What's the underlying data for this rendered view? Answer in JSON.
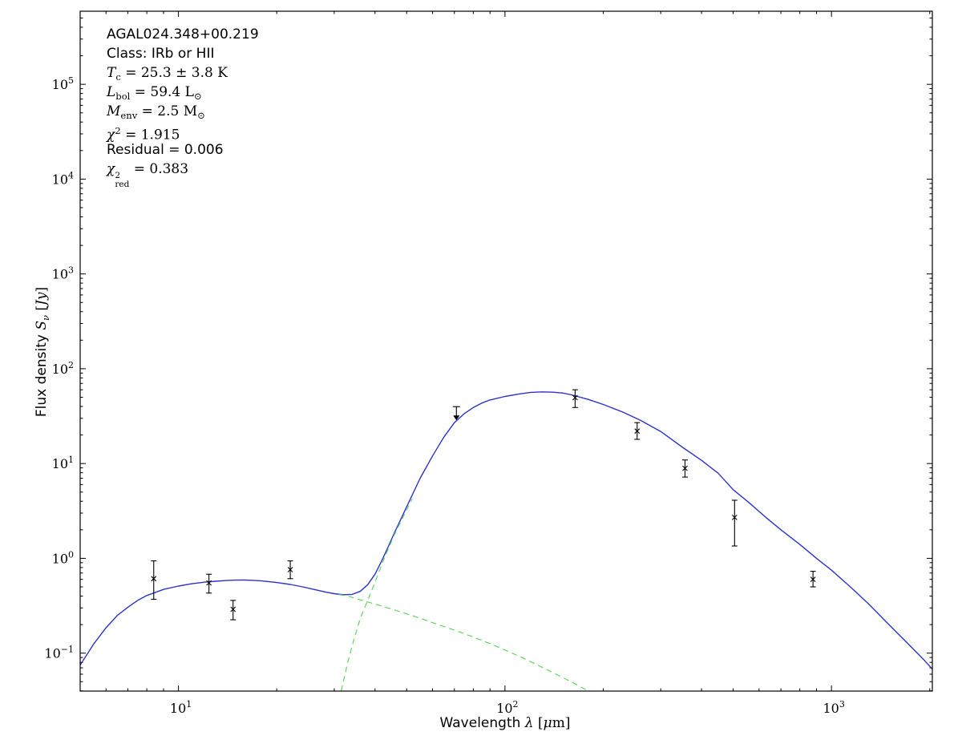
{
  "figure": {
    "background": "#ffffff",
    "annotation_lines": [
      {
        "name": "source-name",
        "segments": [
          {
            "t": "AGAL024.348+00.219",
            "s": "sans"
          }
        ]
      },
      {
        "name": "classification",
        "segments": [
          {
            "t": "Class: IRb or HII",
            "s": "sans"
          }
        ]
      },
      {
        "name": "dust-temperature",
        "segments": [
          {
            "t": "T",
            "s": "it"
          },
          {
            "t": "c",
            "s": "sub"
          },
          {
            "t": " = 25.3 ± 3.8 K",
            "s": "rm"
          }
        ]
      },
      {
        "name": "bolometric-luminosity",
        "segments": [
          {
            "t": "L",
            "s": "it"
          },
          {
            "t": "bol",
            "s": "sub"
          },
          {
            "t": " = 59.4 L",
            "s": "rm"
          },
          {
            "t": "⊙",
            "s": "sub"
          }
        ]
      },
      {
        "name": "envelope-mass",
        "segments": [
          {
            "t": "M",
            "s": "it"
          },
          {
            "t": "env",
            "s": "sub"
          },
          {
            "t": " = 2.5 M",
            "s": "rm"
          },
          {
            "t": "⊙",
            "s": "sub"
          }
        ]
      },
      {
        "name": "chi-squared",
        "segments": [
          {
            "t": "χ",
            "s": "it"
          },
          {
            "t": "2",
            "s": "sup"
          },
          {
            "t": " = 1.915",
            "s": "rm"
          }
        ]
      },
      {
        "name": "residual",
        "segments": [
          {
            "t": "Residual = 0.006",
            "s": "sans"
          }
        ]
      },
      {
        "name": "chi-squared-reduced",
        "segments": [
          {
            "t": "χ",
            "s": "it"
          },
          {
            "sup": "2",
            "sub": "red",
            "s": "stack"
          },
          {
            "t": " = 0.383",
            "s": "rm"
          }
        ]
      }
    ]
  },
  "chart_data": {
    "type": "line",
    "title": "",
    "x_scale": "log",
    "y_scale": "log",
    "xlim": [
      5,
      2037
    ],
    "ylim": [
      0.0398,
      590000
    ],
    "grid": false,
    "legend": "none",
    "xlabel": "Wavelength λ [μm]",
    "ylabel": "Flux density Sν [Jy]",
    "xlabel_segments": [
      {
        "t": "Wavelength ",
        "s": "sans"
      },
      {
        "t": "λ",
        "s": "it"
      },
      {
        "t": " [",
        "s": "rm"
      },
      {
        "t": "μ",
        "s": "it"
      },
      {
        "t": "m",
        "s": "rm"
      },
      {
        "t": "]",
        "s": "rm"
      }
    ],
    "ylabel_segments": [
      {
        "t": "Flux density ",
        "s": "sans"
      },
      {
        "t": "S",
        "s": "it"
      },
      {
        "t": "ν",
        "s": "subit"
      },
      {
        "t": " [",
        "s": "rm"
      },
      {
        "t": "Jy",
        "s": "it"
      },
      {
        "t": "]",
        "s": "rm"
      }
    ],
    "x_major_ticks": [
      10,
      100,
      1000
    ],
    "y_major_ticks": [
      0.1,
      1,
      10,
      100,
      1000,
      10000,
      100000
    ],
    "colors": {
      "model_fit": "#2d32cf",
      "components": "#5ed65e",
      "data": "#000000",
      "frame": "#000000"
    },
    "series": [
      {
        "name": "model-total-fit",
        "color_key": "model_fit",
        "dash": "solid",
        "points": [
          [
            5,
            0.075
          ],
          [
            5.5,
            0.125
          ],
          [
            6,
            0.185
          ],
          [
            6.5,
            0.25
          ],
          [
            7,
            0.305
          ],
          [
            7.5,
            0.36
          ],
          [
            8,
            0.405
          ],
          [
            9,
            0.47
          ],
          [
            10,
            0.51
          ],
          [
            11,
            0.54
          ],
          [
            12,
            0.56
          ],
          [
            13,
            0.573
          ],
          [
            14,
            0.583
          ],
          [
            15,
            0.589
          ],
          [
            16,
            0.59
          ],
          [
            17,
            0.586
          ],
          [
            18,
            0.578
          ],
          [
            20,
            0.556
          ],
          [
            22,
            0.53
          ],
          [
            24,
            0.5
          ],
          [
            26,
            0.47
          ],
          [
            28,
            0.443
          ],
          [
            30,
            0.424
          ],
          [
            32,
            0.413
          ],
          [
            34,
            0.417
          ],
          [
            36,
            0.448
          ],
          [
            38,
            0.527
          ],
          [
            40,
            0.68
          ],
          [
            42,
            0.95
          ],
          [
            44,
            1.35
          ],
          [
            46,
            1.9
          ],
          [
            48,
            2.6
          ],
          [
            50,
            3.5
          ],
          [
            55,
            7
          ],
          [
            60,
            12
          ],
          [
            65,
            19
          ],
          [
            70,
            27
          ],
          [
            75,
            33.5
          ],
          [
            80,
            39
          ],
          [
            85,
            43.5
          ],
          [
            90,
            46.8
          ],
          [
            100,
            51
          ],
          [
            110,
            54
          ],
          [
            120,
            56.3
          ],
          [
            130,
            57
          ],
          [
            140,
            56.6
          ],
          [
            150,
            55.5
          ],
          [
            160,
            53
          ],
          [
            180,
            47.5
          ],
          [
            200,
            42
          ],
          [
            230,
            34.8
          ],
          [
            260,
            28.6
          ],
          [
            300,
            21.8
          ],
          [
            350,
            14.8
          ],
          [
            400,
            10.8
          ],
          [
            450,
            7.9
          ],
          [
            500,
            5.3
          ],
          [
            560,
            3.85
          ],
          [
            630,
            2.7
          ],
          [
            700,
            2
          ],
          [
            800,
            1.4
          ],
          [
            900,
            1
          ],
          [
            1000,
            0.75
          ],
          [
            1150,
            0.49
          ],
          [
            1300,
            0.33
          ],
          [
            1500,
            0.2
          ],
          [
            1700,
            0.13
          ],
          [
            1900,
            0.088
          ],
          [
            2037,
            0.068
          ]
        ]
      },
      {
        "name": "warm-component",
        "color_key": "components",
        "dash": "dashed",
        "points": [
          [
            31,
            0.415
          ],
          [
            33,
            0.4
          ],
          [
            36,
            0.365
          ],
          [
            40,
            0.33
          ],
          [
            45,
            0.292
          ],
          [
            50,
            0.26
          ],
          [
            55,
            0.233
          ],
          [
            60,
            0.21
          ],
          [
            70,
            0.175
          ],
          [
            80,
            0.148
          ],
          [
            90,
            0.126
          ],
          [
            100,
            0.108
          ],
          [
            115,
            0.087
          ],
          [
            130,
            0.071
          ],
          [
            150,
            0.0555
          ],
          [
            165,
            0.047
          ],
          [
            180,
            0.0398
          ]
        ]
      },
      {
        "name": "cold-component",
        "color_key": "components",
        "dash": "dashed",
        "points": [
          [
            31.5,
            0.04
          ],
          [
            33,
            0.08
          ],
          [
            34.5,
            0.14
          ],
          [
            36,
            0.23
          ],
          [
            38,
            0.36
          ],
          [
            40,
            0.56
          ],
          [
            42,
            0.87
          ],
          [
            44,
            1.28
          ],
          [
            46,
            1.82
          ],
          [
            48,
            2.45
          ],
          [
            50,
            3.25
          ],
          [
            52,
            4.25
          ]
        ]
      }
    ],
    "data_points": [
      {
        "x": 8.4,
        "y": 0.61,
        "ylo": 0.37,
        "yhi": 0.94,
        "marker": "x"
      },
      {
        "x": 12.4,
        "y": 0.55,
        "ylo": 0.43,
        "yhi": 0.68,
        "marker": "x"
      },
      {
        "x": 14.7,
        "y": 0.29,
        "ylo": 0.225,
        "yhi": 0.36,
        "marker": "x"
      },
      {
        "x": 22,
        "y": 0.76,
        "ylo": 0.61,
        "yhi": 0.94,
        "marker": "x"
      },
      {
        "x": 71,
        "y": 39.8,
        "upper_limit": true
      },
      {
        "x": 164,
        "y": 49.5,
        "ylo": 39,
        "yhi": 60,
        "marker": "x"
      },
      {
        "x": 254,
        "y": 22,
        "ylo": 18,
        "yhi": 27,
        "marker": "x"
      },
      {
        "x": 356,
        "y": 8.9,
        "ylo": 7.2,
        "yhi": 10.9,
        "marker": "x"
      },
      {
        "x": 505,
        "y": 2.7,
        "ylo": 1.35,
        "yhi": 4.1,
        "marker": "x"
      },
      {
        "x": 878,
        "y": 0.6,
        "ylo": 0.5,
        "yhi": 0.73,
        "marker": "x"
      }
    ]
  }
}
